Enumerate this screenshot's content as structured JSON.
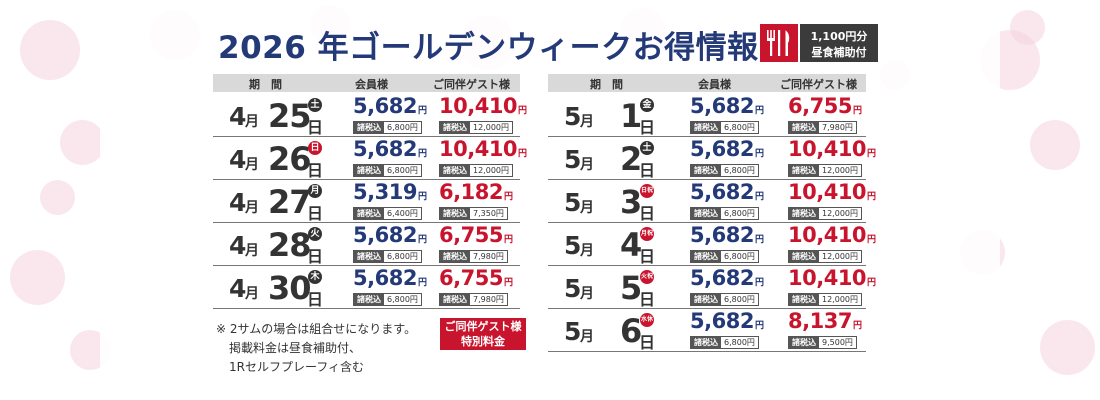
{
  "title": "2026 年ゴールデンウィークお得情報",
  "meal_badge": {
    "line1": "1,100円分",
    "line2": "昼食補助付",
    "icon": "fork-knife-icon"
  },
  "headers": {
    "period": "期　間",
    "member": "会員様",
    "guest": "ご同伴ゲスト様"
  },
  "labels": {
    "month_unit": "月",
    "day_unit": "日",
    "yen": "円",
    "tax_label": "諸税込"
  },
  "left_rows": [
    {
      "month": "4",
      "day": "25",
      "dow": "土",
      "holiday": false,
      "member_price": "5,682",
      "member_tax": "6,800円",
      "guest_price": "10,410",
      "guest_tax": "12,000円"
    },
    {
      "month": "4",
      "day": "26",
      "dow": "日",
      "holiday": true,
      "member_price": "5,682",
      "member_tax": "6,800円",
      "guest_price": "10,410",
      "guest_tax": "12,000円"
    },
    {
      "month": "4",
      "day": "27",
      "dow": "月",
      "holiday": false,
      "member_price": "5,319",
      "member_tax": "6,400円",
      "guest_price": "6,182",
      "guest_tax": "7,350円"
    },
    {
      "month": "4",
      "day": "28",
      "dow": "火",
      "holiday": false,
      "member_price": "5,682",
      "member_tax": "6,800円",
      "guest_price": "6,755",
      "guest_tax": "7,980円"
    },
    {
      "month": "4",
      "day": "30",
      "dow": "木",
      "holiday": false,
      "member_price": "5,682",
      "member_tax": "6,800円",
      "guest_price": "6,755",
      "guest_tax": "7,980円"
    }
  ],
  "right_rows": [
    {
      "month": "5",
      "day": "1",
      "dow": "金",
      "holiday": false,
      "member_price": "5,682",
      "member_tax": "6,800円",
      "guest_price": "6,755",
      "guest_tax": "7,980円"
    },
    {
      "month": "5",
      "day": "2",
      "dow": "土",
      "holiday": false,
      "member_price": "5,682",
      "member_tax": "6,800円",
      "guest_price": "10,410",
      "guest_tax": "12,000円"
    },
    {
      "month": "5",
      "day": "3",
      "dow": "日祝",
      "holiday": true,
      "member_price": "5,682",
      "member_tax": "6,800円",
      "guest_price": "10,410",
      "guest_tax": "12,000円"
    },
    {
      "month": "5",
      "day": "4",
      "dow": "月祝",
      "holiday": true,
      "member_price": "5,682",
      "member_tax": "6,800円",
      "guest_price": "10,410",
      "guest_tax": "12,000円"
    },
    {
      "month": "5",
      "day": "5",
      "dow": "火祝",
      "holiday": true,
      "member_price": "5,682",
      "member_tax": "6,800円",
      "guest_price": "10,410",
      "guest_tax": "12,000円"
    },
    {
      "month": "5",
      "day": "6",
      "dow": "水休",
      "holiday": true,
      "member_price": "5,682",
      "member_tax": "6,800円",
      "guest_price": "8,137",
      "guest_tax": "9,500円"
    }
  ],
  "notes": [
    "※ 2サムの場合は組合せになります。",
    "掲載料金は昼食補助付、",
    "1Rセルフプレーフィ含む"
  ],
  "special_badge": {
    "line1": "ご同伴ゲスト様",
    "line2": "特別料金"
  },
  "colors": {
    "navy": "#243a78",
    "red": "#c8152d",
    "pink": "#f6d3de"
  }
}
